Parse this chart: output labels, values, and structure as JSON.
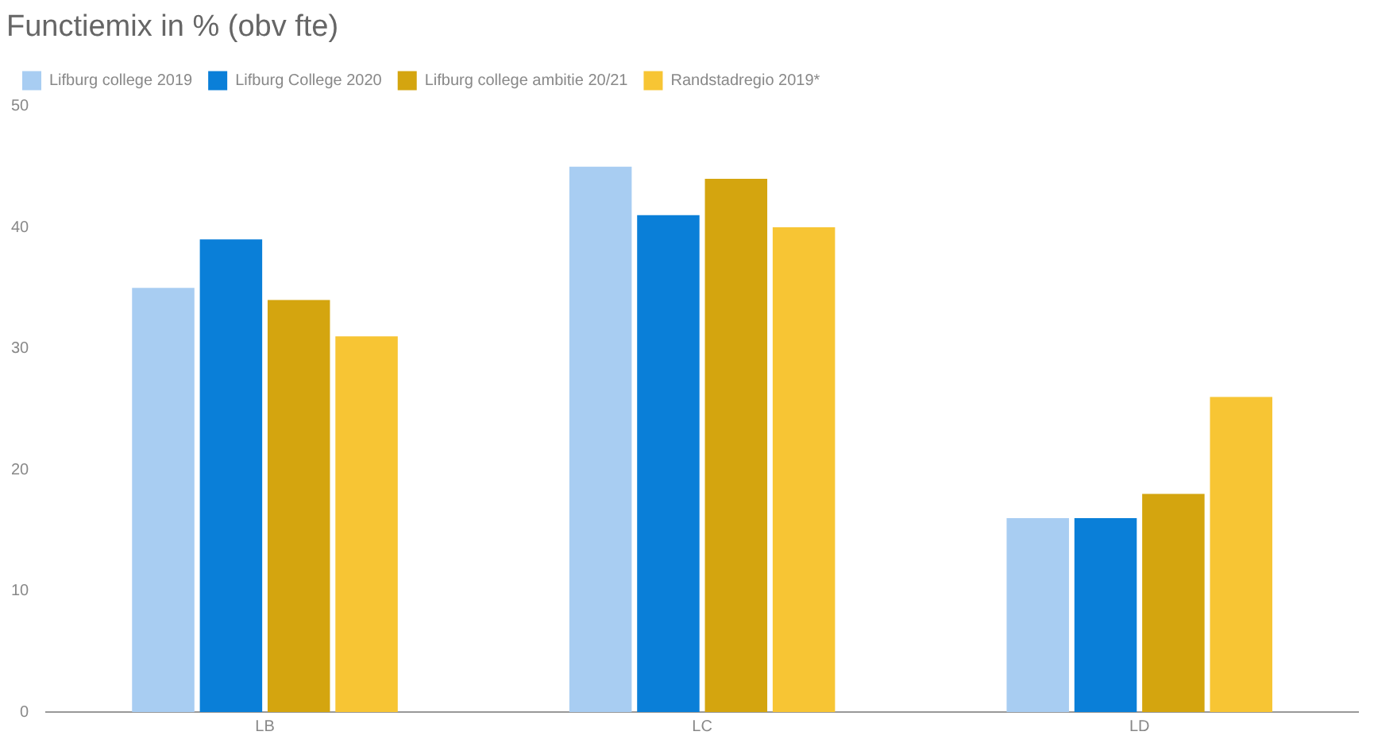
{
  "chart_data": {
    "type": "bar",
    "title": "Functiemix in % (obv fte)",
    "categories": [
      "LB",
      "LC",
      "LD"
    ],
    "series": [
      {
        "name": "Lifburg college 2019",
        "color": "#a8cdf2",
        "values": [
          35,
          45,
          16
        ]
      },
      {
        "name": "Lifburg College 2020",
        "color": "#0a7fd8",
        "values": [
          39,
          41,
          16
        ]
      },
      {
        "name": "Lifburg college ambitie 20/21",
        "color": "#d4a50f",
        "values": [
          34,
          44,
          18
        ]
      },
      {
        "name": "Randstadregio 2019*",
        "color": "#f7c534",
        "values": [
          31,
          40,
          26
        ]
      }
    ],
    "ylim": [
      0,
      50
    ],
    "yticks": [
      0,
      10,
      20,
      30,
      40,
      50
    ],
    "grid": false,
    "legend": "top left"
  }
}
